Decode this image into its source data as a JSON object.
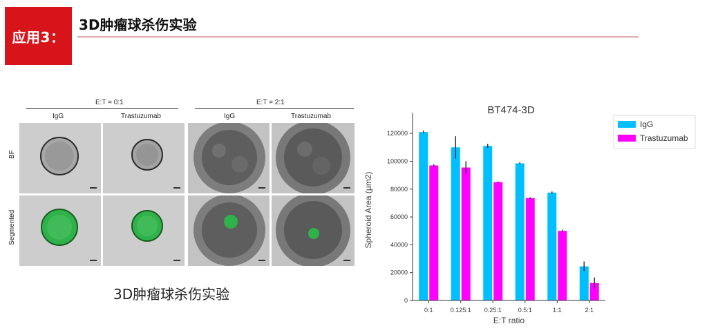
{
  "header": {
    "badge": "应用3：",
    "title": "3D肿瘤球杀伤实验"
  },
  "figure": {
    "groups": [
      "E:T = 0:1",
      "E:T = 2:1"
    ],
    "columns": [
      "IgG",
      "Trastuzumab",
      "IgG",
      "Trastuzumab"
    ],
    "rows": [
      "BF",
      "Segmented"
    ],
    "caption": "3D肿瘤球杀伤实验"
  },
  "colors": {
    "brand_red": "#d7141a",
    "igg": "#00bfff",
    "trastuzumab": "#ff00ff",
    "segment_green": "#2fb24a"
  },
  "chart_data": {
    "type": "bar",
    "title": "BT474-3D",
    "xlabel": "E:T ratio",
    "ylabel": "Spheroid Area (μm2)",
    "categories": [
      "0:1",
      "0.125:1",
      "0.25:1",
      "0.5:1",
      "1:1",
      "2:1"
    ],
    "ylim": [
      0,
      130000
    ],
    "yticks": [
      0,
      20000,
      40000,
      60000,
      80000,
      100000,
      120000
    ],
    "legend_position": "top-right",
    "grid": false,
    "series": [
      {
        "name": "IgG",
        "values": [
          121000,
          110000,
          111000,
          98500,
          77500,
          24500
        ],
        "errors": [
          1000,
          8000,
          1500,
          800,
          800,
          3500
        ]
      },
      {
        "name": "Trastuzumab",
        "values": [
          97000,
          95500,
          85000,
          73500,
          50000,
          12500
        ],
        "errors": [
          800,
          4500,
          500,
          600,
          800,
          4000
        ]
      }
    ]
  }
}
